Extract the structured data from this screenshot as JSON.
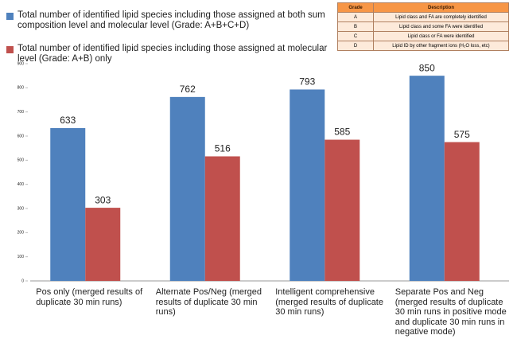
{
  "chart_data": {
    "type": "bar",
    "categories": [
      "Pos only (merged results of duplicate 30 min runs)",
      "Alternate Pos/Neg (merged results of duplicate 30 min runs)",
      "Intelligent comprehensive (merged results of duplicate 30 min runs)",
      "Separate Pos and Neg (merged results of duplicate 30 min runs in positive mode  and duplicate 30 min runs in negative mode)"
    ],
    "series": [
      {
        "name": "Total number of identified lipid species including those assigned at both sum composition level and molecular level (Grade: A+B+C+D)",
        "color": "#4f81bd",
        "values": [
          633,
          762,
          793,
          850
        ]
      },
      {
        "name": "Total number of identified lipid species including those assigned at molecular level  (Grade: A+B) only",
        "color": "#c0504d",
        "values": [
          303,
          516,
          585,
          575
        ]
      }
    ],
    "ylim": [
      0,
      900
    ],
    "yticks": [
      0,
      100,
      200,
      300,
      400,
      500,
      600,
      700,
      800,
      900
    ],
    "grid": false
  },
  "grade_table": {
    "header": [
      "Grade",
      "Description"
    ],
    "rows": [
      [
        "A",
        "Lipid class and FA are completely identified"
      ],
      [
        "B",
        "Lipid class and some FA were identified"
      ],
      [
        "C",
        "Lipid class or FA were identified"
      ],
      [
        "D",
        "Lipid ID by other fragment ions (H₂O loss, etc)"
      ]
    ]
  }
}
